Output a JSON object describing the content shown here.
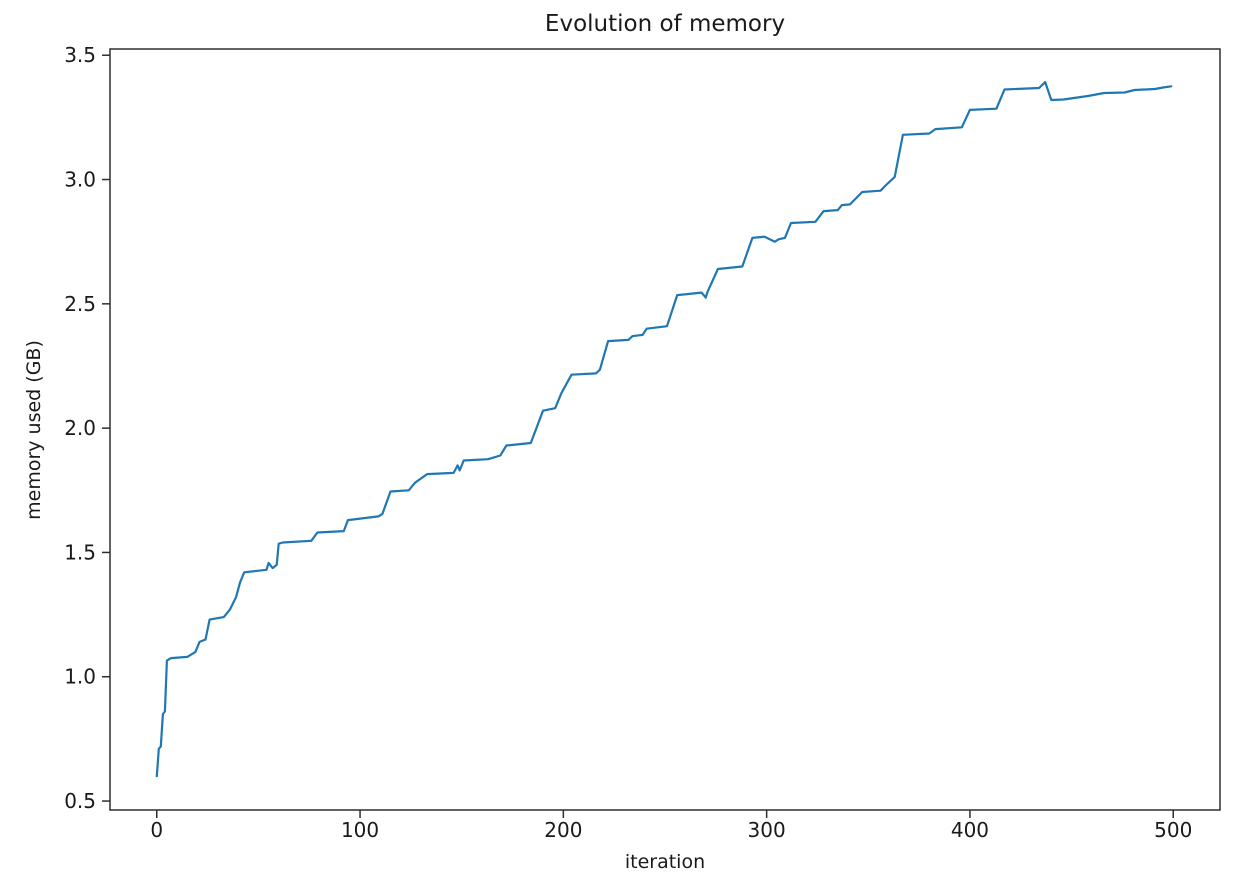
{
  "figure": {
    "title": "Evolution of memory",
    "xlabel": "iteration",
    "ylabel": "memory used (GB)",
    "colors": {
      "line": "#1f77b4",
      "text": "#1a1a1a",
      "spine": "#2e2e2e",
      "background": "#ffffff"
    }
  },
  "chart_data": {
    "type": "line",
    "title": "Evolution of memory",
    "xlabel": "iteration",
    "ylabel": "memory used (GB)",
    "xlim": [
      -23,
      523
    ],
    "ylim": [
      0.464,
      3.525
    ],
    "grid": false,
    "legend": "none",
    "xticks": {
      "values": [
        0,
        100,
        200,
        300,
        400,
        500
      ],
      "labels": [
        "0",
        "100",
        "200",
        "300",
        "400",
        "500"
      ]
    },
    "yticks": {
      "values": [
        0.5,
        1.0,
        1.5,
        2.0,
        2.5,
        3.0,
        3.5
      ],
      "labels": [
        "0.5",
        "1.0",
        "1.5",
        "2.0",
        "2.5",
        "3.0",
        "3.5"
      ]
    },
    "series": [
      {
        "name": "memory used (GB)",
        "color": "#1f77b4",
        "x": [
          0,
          1,
          2,
          3,
          4,
          5,
          7,
          15,
          19,
          21,
          24,
          26,
          33,
          36,
          39,
          41,
          43,
          54,
          55,
          57,
          59,
          60,
          62,
          76,
          79,
          92,
          94,
          109,
          111,
          115,
          124,
          127,
          133,
          146,
          148,
          149,
          151,
          163,
          169,
          172,
          184,
          190,
          196,
          199,
          204,
          216,
          218,
          222,
          232,
          234,
          239,
          241,
          251,
          256,
          268,
          270,
          271,
          276,
          288,
          293,
          299,
          304,
          306,
          309,
          312,
          324,
          328,
          335,
          337,
          341,
          347,
          356,
          359,
          363,
          367,
          380,
          383,
          396,
          400,
          413,
          417,
          434,
          437,
          440,
          446,
          458,
          466,
          476,
          481,
          491,
          495,
          499
        ],
        "y": [
          0.6,
          0.71,
          0.72,
          0.85,
          0.86,
          1.065,
          1.075,
          1.08,
          1.1,
          1.14,
          1.15,
          1.23,
          1.24,
          1.27,
          1.32,
          1.38,
          1.42,
          1.43,
          1.458,
          1.437,
          1.45,
          1.535,
          1.54,
          1.547,
          1.58,
          1.586,
          1.63,
          1.645,
          1.655,
          1.745,
          1.75,
          1.78,
          1.815,
          1.82,
          1.85,
          1.83,
          1.87,
          1.875,
          1.89,
          1.93,
          1.94,
          2.07,
          2.08,
          2.14,
          2.215,
          2.22,
          2.235,
          2.35,
          2.355,
          2.37,
          2.375,
          2.4,
          2.41,
          2.535,
          2.545,
          2.525,
          2.55,
          2.64,
          2.65,
          2.765,
          2.77,
          2.75,
          2.76,
          2.765,
          2.825,
          2.83,
          2.873,
          2.877,
          2.897,
          2.9,
          2.95,
          2.955,
          2.98,
          3.01,
          3.18,
          3.185,
          3.203,
          3.21,
          3.28,
          3.285,
          3.362,
          3.368,
          3.392,
          3.32,
          3.322,
          3.336,
          3.348,
          3.35,
          3.36,
          3.364,
          3.37,
          3.375
        ]
      }
    ]
  }
}
